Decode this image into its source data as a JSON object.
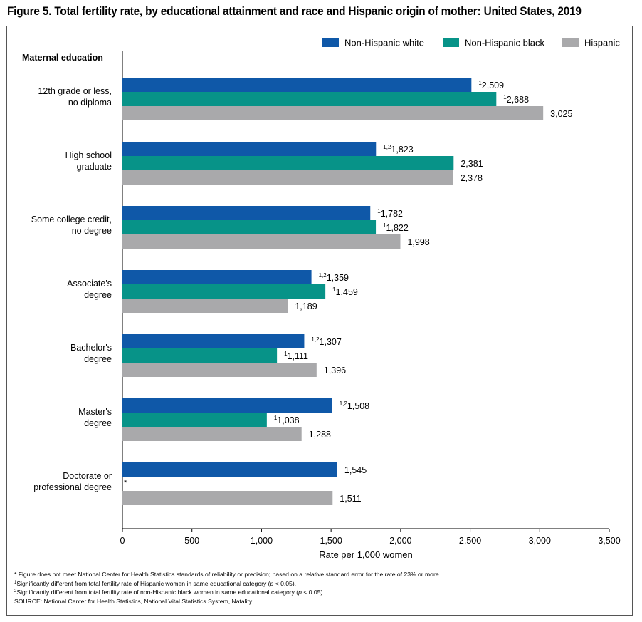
{
  "title": "Figure 5. Total fertility rate, by educational attainment and race and Hispanic origin of mother: United States, 2019",
  "colors": {
    "white": "#0f58a8",
    "black": "#079388",
    "hispanic": "#a9a9ab"
  },
  "chart_data": {
    "type": "bar",
    "orientation": "horizontal",
    "ylabel": "Maternal education",
    "xlabel": "Rate per 1,000 women",
    "xlim": [
      0,
      3500
    ],
    "xticks": [
      0,
      500,
      1000,
      1500,
      2000,
      2500,
      3000,
      3500
    ],
    "xtick_labels": [
      "0",
      "500",
      "1,000",
      "1,500",
      "2,000",
      "2,500",
      "3,000",
      "3,500"
    ],
    "grid": false,
    "legend_position": "top-right",
    "categories": [
      [
        "12th grade or less,",
        "no diploma"
      ],
      [
        "High school",
        "graduate"
      ],
      [
        "Some college credit,",
        "no degree"
      ],
      [
        "Associate's",
        "degree"
      ],
      [
        "Bachelor's",
        "degree"
      ],
      [
        "Master's",
        "degree"
      ],
      [
        "Doctorate or",
        "professional degree"
      ]
    ],
    "series": [
      {
        "name": "Non-Hispanic white",
        "color_key": "white",
        "values": [
          2509,
          1823,
          1782,
          1359,
          1307,
          1508,
          1545
        ],
        "labels": [
          "2,509",
          "1,823",
          "1,782",
          "1,359",
          "1,307",
          "1,508",
          "1,545"
        ],
        "markers": [
          "1",
          "1,2",
          "1",
          "1,2",
          "1,2",
          "1,2",
          ""
        ]
      },
      {
        "name": "Non-Hispanic black",
        "color_key": "black",
        "values": [
          2688,
          2381,
          1822,
          1459,
          1111,
          1038,
          null
        ],
        "labels": [
          "2,688",
          "2,381",
          "1,822",
          "1,459",
          "1,111",
          "1,038",
          ""
        ],
        "markers": [
          "1",
          "",
          "1",
          "1",
          "1",
          "1",
          "*"
        ]
      },
      {
        "name": "Hispanic",
        "color_key": "hispanic",
        "values": [
          3025,
          2378,
          1998,
          1189,
          1396,
          1288,
          1511
        ],
        "labels": [
          "3,025",
          "2,378",
          "1,998",
          "1,189",
          "1,396",
          "1,288",
          "1,511"
        ],
        "markers": [
          "",
          "",
          "",
          "",
          "",
          "",
          ""
        ]
      }
    ]
  },
  "footnotes": {
    "n1": "* Figure does not meet National Center for Health Statistics standards of reliability or precision; based on a relative standard error for the rate of 23% or more.",
    "n2_sup": "1",
    "n2_pre": "Significantly different from total fertility rate of Hispanic women in same educational category (",
    "n2_p": "p",
    "n2_post": " < 0.05).",
    "n3_sup": "2",
    "n3_pre": "Significantly different from total fertility rate of non-Hispanic black women in same educational category (",
    "n3_p": "p",
    "n3_post": " < 0.05).",
    "source": "SOURCE: National Center for Health Statistics, National Vital Statistics System, Natality."
  }
}
